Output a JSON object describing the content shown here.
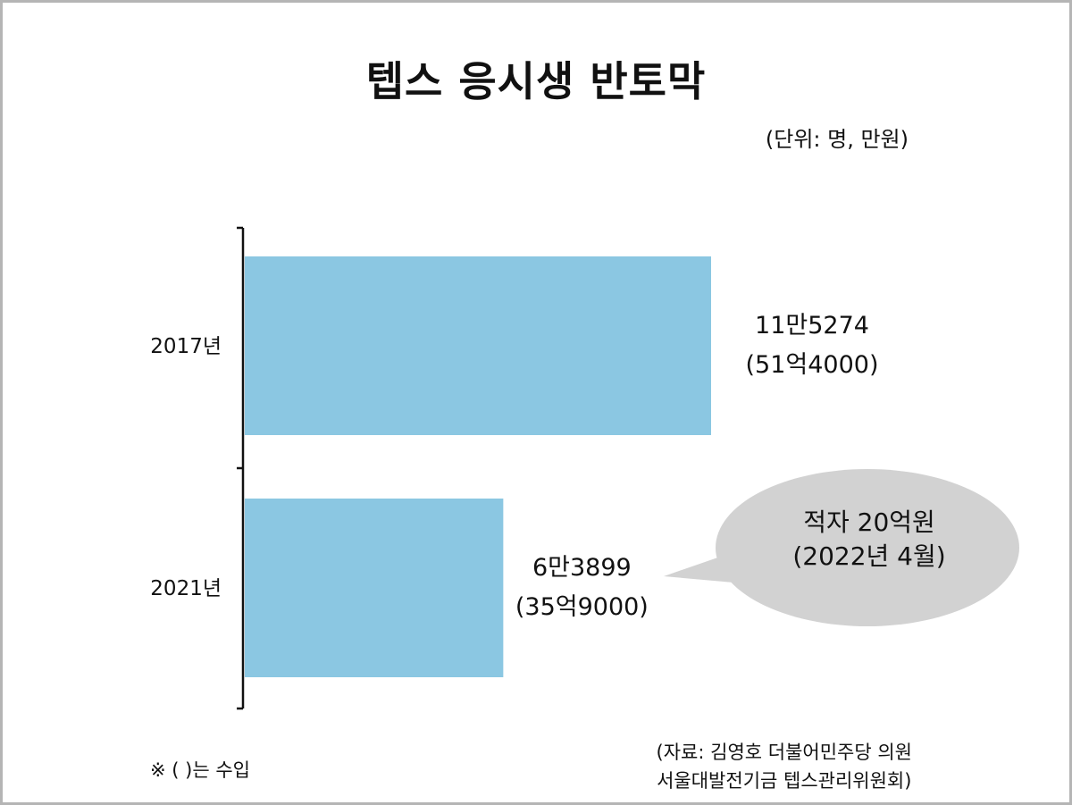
{
  "title": "텝스 응시생 반토막",
  "unit_note": "(단위: 명, 만원)",
  "chart_data": {
    "type": "bar",
    "orientation": "horizontal",
    "categories": [
      "2017년",
      "2021년"
    ],
    "values": [
      115274,
      63899
    ],
    "revenue": [
      514000,
      359000
    ],
    "value_labels": [
      "11만5274",
      "6만3899"
    ],
    "revenue_labels": [
      "(51억4000)",
      "(35억9000)"
    ],
    "xlim": [
      0,
      115274
    ],
    "bar_color": "#8bc7e2"
  },
  "callout": {
    "line1": "적자 20억원",
    "line2": "(2022년 4월)",
    "color": "#d2d2d2"
  },
  "footnote": "※ ( )는 수입",
  "source": {
    "line1": "(자료: 김영호 더불어민주당 의원",
    "line2": "서울대발전기금 텝스관리위원회)"
  }
}
